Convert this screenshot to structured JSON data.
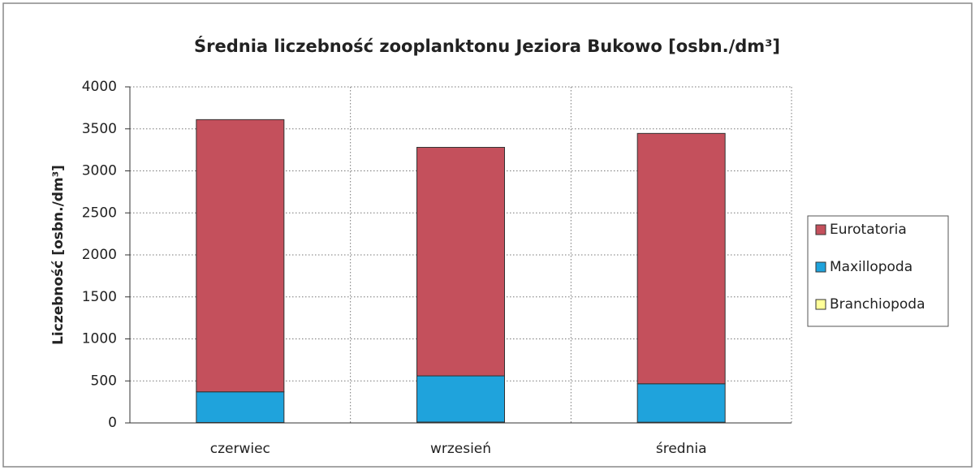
{
  "chart_data": {
    "type": "stacked_bar",
    "title": "Średnia liczebność zooplanktonu Jeziora Bukowo [osbn./dm³]",
    "y_label": "Liczebność [osbn./dm³]",
    "categories": [
      "czerwiec",
      "wrzesień",
      "średnia"
    ],
    "series": [
      {
        "name": "Eurotatoria",
        "color": "#c4505c",
        "values": [
          3240,
          2720,
          2980
        ]
      },
      {
        "name": "Maxillopoda",
        "color": "#1fa3dc",
        "values": [
          365,
          550,
          458
        ]
      },
      {
        "name": "Branchiopoda",
        "color": "#ffff99",
        "values": [
          5,
          10,
          8
        ]
      }
    ],
    "ylim": [
      0,
      4000
    ],
    "yticks": [
      0,
      500,
      1000,
      1500,
      2000,
      2500,
      3000,
      3500,
      4000
    ],
    "grid": true,
    "legend": "right"
  }
}
